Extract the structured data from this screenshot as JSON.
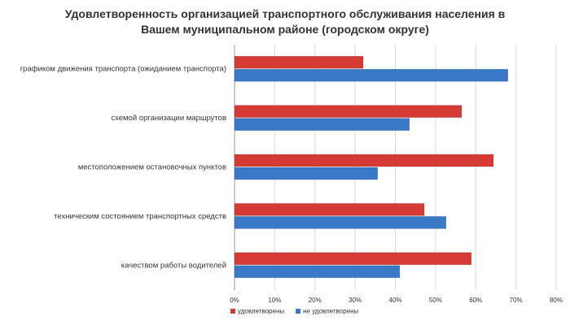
{
  "chart_data": {
    "type": "hbar",
    "title": "Удовлетворенность организацией транспортного обслуживания населения в Вашем муниципальном районе (городском округе)",
    "categories": [
      "графиком движения транспорта (ожиданием транспорта)",
      "схемой организации маршрутов",
      "местоположением остановочных пунктов",
      "техническим состоянием транспортных средств",
      "качеством работы водителей"
    ],
    "series": [
      {
        "name": "удовлетворены",
        "color": "#d63a35",
        "values": [
          32,
          56.5,
          64.4,
          47.2,
          58.9
        ]
      },
      {
        "name": "не удовлетворены",
        "color": "#3a78c8",
        "values": [
          68,
          43.5,
          35.6,
          52.6,
          41.1
        ]
      }
    ],
    "xlim": [
      0,
      80
    ],
    "xticks": [
      {
        "value": 0,
        "label": "0%"
      },
      {
        "value": 10,
        "label": "10%"
      },
      {
        "value": 20,
        "label": "20%"
      },
      {
        "value": 30,
        "label": "30%"
      },
      {
        "value": 40,
        "label": "40%"
      },
      {
        "value": 50,
        "label": "50%"
      },
      {
        "value": 60,
        "label": "60%"
      },
      {
        "value": 70,
        "label": "70%"
      },
      {
        "value": 80,
        "label": "80%"
      }
    ],
    "grid": true,
    "legend": "bottom"
  }
}
